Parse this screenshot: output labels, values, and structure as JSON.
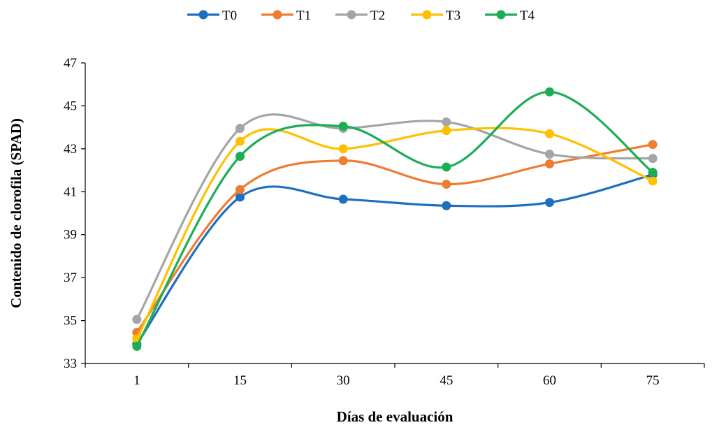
{
  "chart_data": {
    "type": "line",
    "title": "",
    "xlabel": "Días de evaluación",
    "ylabel": "Contenido de clorofila (SPAD)",
    "categories": [
      "1",
      "15",
      "30",
      "45",
      "60",
      "75"
    ],
    "ylim": [
      33,
      47
    ],
    "yticks": [
      33,
      35,
      37,
      39,
      41,
      43,
      45,
      47
    ],
    "grid": false,
    "legend_position": "top",
    "smooth": true,
    "series": [
      {
        "name": "T0",
        "color": "#1F6FBF",
        "values": [
          33.9,
          40.75,
          40.65,
          40.35,
          40.5,
          41.8
        ]
      },
      {
        "name": "T1",
        "color": "#ED7D31",
        "values": [
          34.45,
          41.1,
          42.45,
          41.35,
          42.3,
          43.2
        ]
      },
      {
        "name": "T2",
        "color": "#A5A5A5",
        "values": [
          35.05,
          43.95,
          43.95,
          44.25,
          42.75,
          42.55
        ]
      },
      {
        "name": "T3",
        "color": "#FFC000",
        "values": [
          34.15,
          43.35,
          43.0,
          43.85,
          43.7,
          41.5
        ]
      },
      {
        "name": "T4",
        "color": "#1AAE55",
        "values": [
          33.8,
          42.65,
          44.05,
          42.15,
          45.65,
          41.9
        ]
      }
    ]
  }
}
